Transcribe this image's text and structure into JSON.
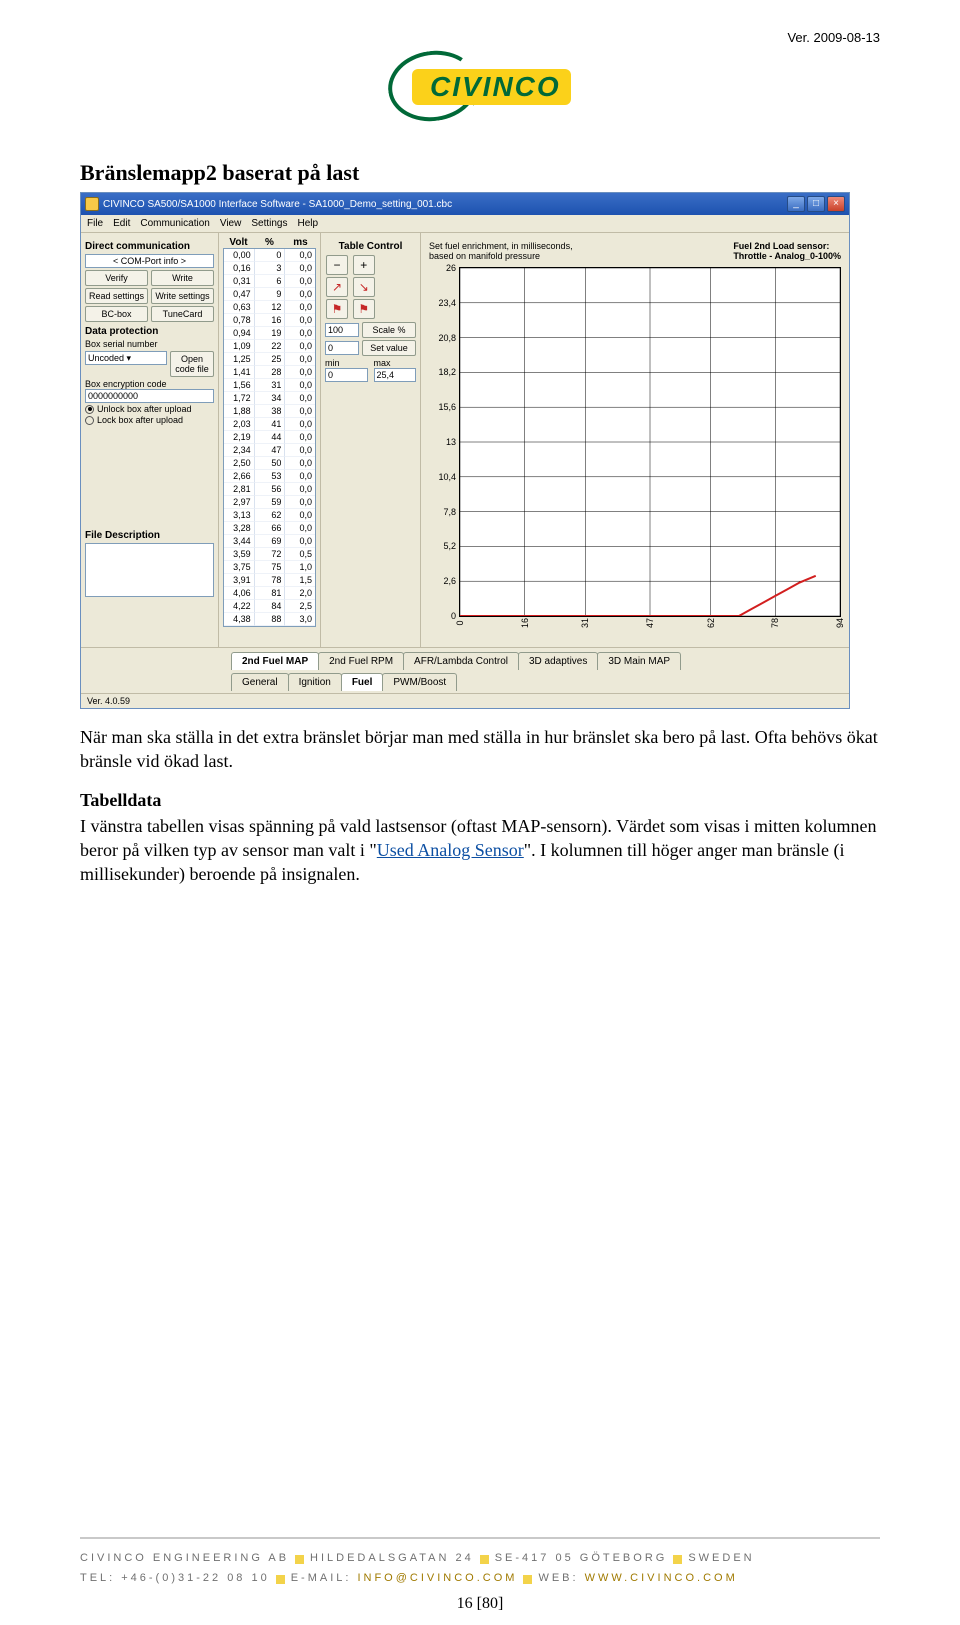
{
  "meta": {
    "version_label": "Ver. 2009-08-13",
    "logo_text": "CIVINCO"
  },
  "heading": "Bränslemapp2 baserat på last",
  "window": {
    "title": "CIVINCO SA500/SA1000 Interface Software - SA1000_Demo_setting_001.cbc",
    "menu": [
      "File",
      "Edit",
      "Communication",
      "View",
      "Settings",
      "Help"
    ],
    "status": "Ver. 4.0.59"
  },
  "left": {
    "direct_comm": "Direct communication",
    "com_info": "< COM-Port info >",
    "verify": "Verify",
    "write": "Write",
    "read_settings": "Read settings",
    "write_settings": "Write settings",
    "bcbox": "BC-box",
    "tunecard": "TuneCard",
    "data_protection": "Data protection",
    "box_serial": "Box serial number",
    "open_code": "Open code file",
    "uncoded": "Uncoded",
    "box_enc": "Box encryption code",
    "enc_value": "0000000000",
    "unlock": "Unlock box after upload",
    "lock": "Lock box after upload",
    "file_desc": "File Description"
  },
  "table": {
    "headers": [
      "Volt",
      "%",
      "ms"
    ],
    "rows": [
      [
        "0,00",
        "0",
        "0,0"
      ],
      [
        "0,16",
        "3",
        "0,0"
      ],
      [
        "0,31",
        "6",
        "0,0"
      ],
      [
        "0,47",
        "9",
        "0,0"
      ],
      [
        "0,63",
        "12",
        "0,0"
      ],
      [
        "0,78",
        "16",
        "0,0"
      ],
      [
        "0,94",
        "19",
        "0,0"
      ],
      [
        "1,09",
        "22",
        "0,0"
      ],
      [
        "1,25",
        "25",
        "0,0"
      ],
      [
        "1,41",
        "28",
        "0,0"
      ],
      [
        "1,56",
        "31",
        "0,0"
      ],
      [
        "1,72",
        "34",
        "0,0"
      ],
      [
        "1,88",
        "38",
        "0,0"
      ],
      [
        "2,03",
        "41",
        "0,0"
      ],
      [
        "2,19",
        "44",
        "0,0"
      ],
      [
        "2,34",
        "47",
        "0,0"
      ],
      [
        "2,50",
        "50",
        "0,0"
      ],
      [
        "2,66",
        "53",
        "0,0"
      ],
      [
        "2,81",
        "56",
        "0,0"
      ],
      [
        "2,97",
        "59",
        "0,0"
      ],
      [
        "3,13",
        "62",
        "0,0"
      ],
      [
        "3,28",
        "66",
        "0,0"
      ],
      [
        "3,44",
        "69",
        "0,0"
      ],
      [
        "3,59",
        "72",
        "0,5"
      ],
      [
        "3,75",
        "75",
        "1,0"
      ],
      [
        "3,91",
        "78",
        "1,5"
      ],
      [
        "4,06",
        "81",
        "2,0"
      ],
      [
        "4,22",
        "84",
        "2,5"
      ],
      [
        "4,38",
        "88",
        "3,0"
      ]
    ]
  },
  "controls": {
    "title": "Table Control",
    "scale_label": "Scale %",
    "scale_value": "100",
    "setvalue_label": "Set value",
    "setvalue_value": "0",
    "min_label": "min",
    "max_label": "max",
    "min_value": "0",
    "max_value": "25,4"
  },
  "chart": {
    "desc_left": "Set fuel enrichment, in milliseconds,\nbased on manifold pressure",
    "desc_right_title": "Fuel 2nd Load sensor:",
    "desc_right_value": "Throttle - Analog_0-100%",
    "y_ticks": [
      0,
      2.6,
      5.2,
      7.8,
      10.4,
      13,
      15.6,
      18.2,
      20.8,
      23.4,
      26
    ],
    "y_labels": [
      "0",
      "2,6",
      "5,2",
      "7,8",
      "10,4",
      "13",
      "15,6",
      "18,2",
      "20,8",
      "23,4",
      "26"
    ],
    "x_ticks": [
      0,
      16,
      31,
      47,
      62,
      78,
      94
    ],
    "x_labels": [
      "0",
      "16",
      "31",
      "47",
      "62",
      "78",
      "94"
    ],
    "ylim": [
      0,
      26
    ],
    "xlim": [
      0,
      94
    ],
    "line_color": "#d21f1f",
    "grid_color": "#000000",
    "background_color": "#ffffff",
    "line_width": 2,
    "series": {
      "x": [
        0,
        3,
        6,
        9,
        12,
        16,
        19,
        22,
        25,
        28,
        31,
        34,
        38,
        41,
        44,
        47,
        50,
        53,
        56,
        59,
        62,
        66,
        69,
        72,
        75,
        78,
        81,
        84,
        88
      ],
      "y": [
        0,
        0,
        0,
        0,
        0,
        0,
        0,
        0,
        0,
        0,
        0,
        0,
        0,
        0,
        0,
        0,
        0,
        0,
        0,
        0,
        0,
        0,
        0,
        0.5,
        1.0,
        1.5,
        2.0,
        2.5,
        3.0
      ]
    }
  },
  "tabs_upper": [
    {
      "label": "2nd Fuel MAP",
      "active": true
    },
    {
      "label": "2nd Fuel RPM",
      "active": false
    },
    {
      "label": "AFR/Lambda Control",
      "active": false
    },
    {
      "label": "3D adaptives",
      "active": false
    },
    {
      "label": "3D Main MAP",
      "active": false
    }
  ],
  "tabs_lower": [
    {
      "label": "General",
      "active": false
    },
    {
      "label": "Ignition",
      "active": false
    },
    {
      "label": "Fuel",
      "active": true
    },
    {
      "label": "PWM/Boost",
      "active": false
    }
  ],
  "body_text": {
    "p1": "När man ska ställa in det extra bränslet börjar man med ställa in hur bränslet ska bero på last. Ofta behövs ökat bränsle vid ökad last.",
    "h_tabelldata": "Tabelldata",
    "p2a": "I vänstra tabellen visas spänning på vald lastsensor (oftast MAP-sensorn). Värdet som visas i mitten kolumnen beror på vilken typ av sensor man valt i \"",
    "link": "Used Analog Sensor",
    "p2b": "\". I kolumnen till höger anger man bränsle (i millisekunder) beroende på insignalen."
  },
  "footer": {
    "line1_parts": [
      "CIVINCO ENGINEERING AB",
      "HILDEDALSGATAN 24",
      "SE-417 05 GÖTEBORG",
      "SWEDEN"
    ],
    "tel_label": "TEL:",
    "tel": "+46-(0)31-22 08 10",
    "email_label": "E-MAIL:",
    "email": "INFO@CIVINCO.COM",
    "web_label": "WEB:",
    "web": "WWW.CIVINCO.COM",
    "page_num": "16 [80]"
  }
}
